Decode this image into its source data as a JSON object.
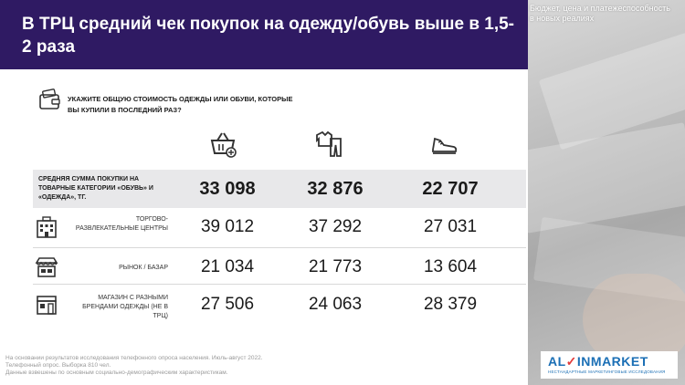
{
  "title": "В ТРЦ средний чек покупок на одежду/обувь выше в 1,5-2 раза",
  "photo_caption": "Бюджет, цена и платежеспособность в новых реалиях",
  "question": "Укажите общую стоимость одежды или обуви, которые вы купили в последний раз?",
  "column_icons": [
    "shopping-basket-icon",
    "clothes-icon",
    "sneaker-icon"
  ],
  "rows": [
    {
      "label": "Средняя сумма покупки на товарные категории «Обувь» и «Одежда», тг.",
      "icon": "",
      "values": [
        "33 098",
        "32 876",
        "22 707"
      ]
    },
    {
      "label": "Торгово-развлекательные центры",
      "icon": "mall-building-icon",
      "values": [
        "39 012",
        "37 292",
        "27 031"
      ]
    },
    {
      "label": "Рынок / Базар",
      "icon": "market-stall-icon",
      "values": [
        "21 034",
        "21 773",
        "13 604"
      ]
    },
    {
      "label": "Магазин с разными брендами одежды (не в ТРЦ)",
      "icon": "store-icon",
      "values": [
        "27 506",
        "24 063",
        "28 379"
      ]
    }
  ],
  "footer": {
    "line1": "На основании результатов исследования телефонного опроса населения. Июль-август 2022.",
    "line2": "Телефонный опрос. Выборка 810 чел.",
    "line3": "Данные взвешены по основным социально-демографическим характеристикам."
  },
  "logo": {
    "part1": "AL",
    "part2": "INMARKET",
    "tagline": "НЕСТАНДАРТНЫЕ МАРКЕТИНГОВЫЕ ИССЛЕДОВАНИЯ"
  },
  "colors": {
    "header": "#2f1a63",
    "logo": "#1b6fb5",
    "band": "#e8e8ea"
  }
}
